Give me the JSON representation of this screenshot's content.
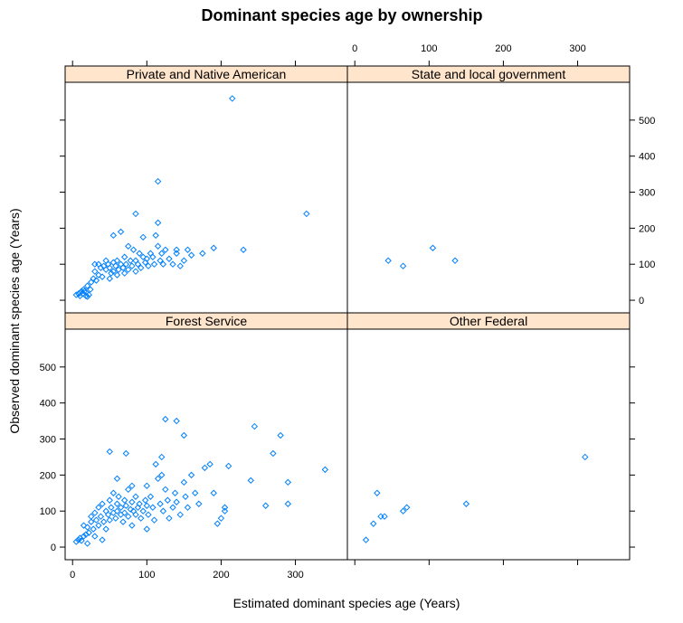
{
  "chart_data": {
    "type": "scatter",
    "title": "Dominant species age by ownership",
    "xlabel": "Estimated dominant species age (Years)",
    "ylabel": "Observed dominant species age (Years)",
    "xlim": [
      -10,
      370
    ],
    "ylim": [
      -35,
      605
    ],
    "x_ticks": [
      0,
      100,
      200,
      300
    ],
    "y_ticks": [
      0,
      100,
      200,
      300,
      400,
      500
    ],
    "colors": {
      "points": "#0080ff",
      "strip": "#ffe5cc"
    },
    "panels": [
      {
        "name": "Private and Native American",
        "points": [
          [
            5,
            15
          ],
          [
            8,
            18
          ],
          [
            10,
            20
          ],
          [
            12,
            25
          ],
          [
            10,
            12
          ],
          [
            14,
            18
          ],
          [
            15,
            30
          ],
          [
            18,
            22
          ],
          [
            20,
            40
          ],
          [
            22,
            15
          ],
          [
            25,
            50
          ],
          [
            24,
            30
          ],
          [
            28,
            60
          ],
          [
            30,
            80
          ],
          [
            32,
            55
          ],
          [
            35,
            70
          ],
          [
            35,
            100
          ],
          [
            38,
            90
          ],
          [
            40,
            65
          ],
          [
            42,
            95
          ],
          [
            45,
            85
          ],
          [
            45,
            110
          ],
          [
            48,
            100
          ],
          [
            50,
            60
          ],
          [
            50,
            90
          ],
          [
            52,
            75
          ],
          [
            55,
            105
          ],
          [
            55,
            80
          ],
          [
            58,
            95
          ],
          [
            60,
            110
          ],
          [
            60,
            70
          ],
          [
            62,
            85
          ],
          [
            65,
            100
          ],
          [
            68,
            90
          ],
          [
            70,
            75
          ],
          [
            70,
            120
          ],
          [
            72,
            100
          ],
          [
            75,
            85
          ],
          [
            75,
            150
          ],
          [
            78,
            110
          ],
          [
            80,
            95
          ],
          [
            82,
            140
          ],
          [
            85,
            80
          ],
          [
            85,
            110
          ],
          [
            88,
            100
          ],
          [
            90,
            130
          ],
          [
            92,
            90
          ],
          [
            95,
            120
          ],
          [
            98,
            105
          ],
          [
            100,
            115
          ],
          [
            102,
            95
          ],
          [
            105,
            130
          ],
          [
            108,
            120
          ],
          [
            110,
            100
          ],
          [
            112,
            180
          ],
          [
            115,
            150
          ],
          [
            118,
            110
          ],
          [
            120,
            130
          ],
          [
            122,
            100
          ],
          [
            125,
            140
          ],
          [
            130,
            115
          ],
          [
            135,
            100
          ],
          [
            140,
            130
          ],
          [
            145,
            95
          ],
          [
            150,
            110
          ],
          [
            155,
            140
          ],
          [
            160,
            125
          ],
          [
            175,
            130
          ],
          [
            190,
            145
          ],
          [
            115,
            330
          ],
          [
            115,
            215
          ],
          [
            85,
            240
          ],
          [
            65,
            190
          ],
          [
            95,
            175
          ],
          [
            140,
            140
          ],
          [
            230,
            140
          ],
          [
            315,
            240
          ],
          [
            215,
            560
          ],
          [
            55,
            180
          ],
          [
            30,
            100
          ],
          [
            20,
            10
          ],
          [
            16,
            25
          ],
          [
            18,
            12
          ]
        ]
      },
      {
        "name": "State and local government",
        "points": [
          [
            45,
            110
          ],
          [
            65,
            95
          ],
          [
            105,
            145
          ],
          [
            135,
            110
          ]
        ]
      },
      {
        "name": "Forest Service",
        "points": [
          [
            5,
            15
          ],
          [
            8,
            20
          ],
          [
            10,
            25
          ],
          [
            12,
            18
          ],
          [
            15,
            30
          ],
          [
            15,
            60
          ],
          [
            18,
            35
          ],
          [
            20,
            10
          ],
          [
            20,
            55
          ],
          [
            22,
            40
          ],
          [
            25,
            70
          ],
          [
            25,
            85
          ],
          [
            28,
            50
          ],
          [
            30,
            95
          ],
          [
            30,
            30
          ],
          [
            32,
            75
          ],
          [
            35,
            110
          ],
          [
            35,
            60
          ],
          [
            38,
            85
          ],
          [
            40,
            120
          ],
          [
            40,
            20
          ],
          [
            42,
            70
          ],
          [
            45,
            100
          ],
          [
            45,
            50
          ],
          [
            48,
            90
          ],
          [
            50,
            130
          ],
          [
            50,
            75
          ],
          [
            52,
            110
          ],
          [
            55,
            95
          ],
          [
            55,
            150
          ],
          [
            58,
            80
          ],
          [
            60,
            120
          ],
          [
            60,
            100
          ],
          [
            62,
            140
          ],
          [
            65,
            90
          ],
          [
            65,
            110
          ],
          [
            68,
            70
          ],
          [
            70,
            130
          ],
          [
            70,
            95
          ],
          [
            72,
            115
          ],
          [
            75,
            160
          ],
          [
            75,
            85
          ],
          [
            78,
            105
          ],
          [
            80,
            125
          ],
          [
            80,
            60
          ],
          [
            82,
            100
          ],
          [
            85,
            140
          ],
          [
            85,
            90
          ],
          [
            88,
            110
          ],
          [
            90,
            120
          ],
          [
            92,
            80
          ],
          [
            95,
            100
          ],
          [
            98,
            130
          ],
          [
            100,
            115
          ],
          [
            100,
            50
          ],
          [
            102,
            90
          ],
          [
            105,
            140
          ],
          [
            108,
            110
          ],
          [
            110,
            75
          ],
          [
            112,
            230
          ],
          [
            115,
            190
          ],
          [
            118,
            120
          ],
          [
            120,
            200
          ],
          [
            122,
            100
          ],
          [
            125,
            160
          ],
          [
            128,
            130
          ],
          [
            130,
            80
          ],
          [
            135,
            110
          ],
          [
            138,
            150
          ],
          [
            140,
            125
          ],
          [
            145,
            90
          ],
          [
            150,
            180
          ],
          [
            152,
            140
          ],
          [
            155,
            110
          ],
          [
            160,
            200
          ],
          [
            165,
            150
          ],
          [
            170,
            120
          ],
          [
            178,
            220
          ],
          [
            185,
            230
          ],
          [
            190,
            150
          ],
          [
            200,
            80
          ],
          [
            205,
            100
          ],
          [
            210,
            225
          ],
          [
            240,
            185
          ],
          [
            245,
            335
          ],
          [
            260,
            115
          ],
          [
            270,
            260
          ],
          [
            280,
            310
          ],
          [
            290,
            180
          ],
          [
            290,
            120
          ],
          [
            340,
            215
          ],
          [
            125,
            355
          ],
          [
            140,
            350
          ],
          [
            150,
            310
          ],
          [
            50,
            265
          ],
          [
            72,
            260
          ],
          [
            60,
            190
          ],
          [
            80,
            170
          ],
          [
            120,
            250
          ],
          [
            195,
            65
          ],
          [
            100,
            170
          ],
          [
            205,
            110
          ]
        ]
      },
      {
        "name": "Other Federal",
        "points": [
          [
            15,
            20
          ],
          [
            25,
            65
          ],
          [
            30,
            150
          ],
          [
            35,
            85
          ],
          [
            40,
            85
          ],
          [
            65,
            100
          ],
          [
            70,
            110
          ],
          [
            150,
            120
          ],
          [
            310,
            250
          ]
        ]
      }
    ]
  }
}
